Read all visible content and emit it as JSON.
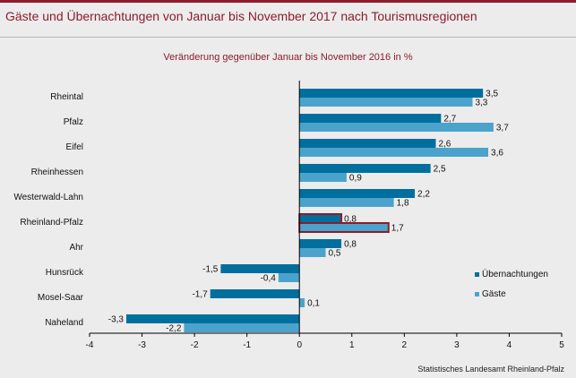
{
  "title": "Gäste und Übernachtungen von Januar bis November 2017 nach Tourismusregionen",
  "source": "Statistisches Landesamt Rheinland-Pfalz",
  "colors": {
    "uebernachtungen": "#006f9e",
    "gaeste": "#4ba3cc",
    "highlight": "#8c1c2c",
    "title": "#8c1c2c"
  },
  "chart_data": {
    "type": "bar",
    "orientation": "horizontal",
    "title": "Veränderung gegenüber Januar bis November 2016 in %",
    "categories": [
      "Rheintal",
      "Pfalz",
      "Eifel",
      "Rheinhessen",
      "Westerwald-Lahn",
      "Rheinland-Pfalz",
      "Ahr",
      "Hunsrück",
      "Mosel-Saar",
      "Naheland"
    ],
    "highlight_category": "Rheinland-Pfalz",
    "series": [
      {
        "name": "Übernachtungen",
        "values": [
          3.5,
          2.7,
          2.6,
          2.5,
          2.2,
          0.8,
          0.8,
          -1.5,
          -1.7,
          -3.3
        ]
      },
      {
        "name": "Gäste",
        "values": [
          3.3,
          3.7,
          3.6,
          0.9,
          1.8,
          1.7,
          0.5,
          -0.4,
          0.1,
          -2.2
        ]
      }
    ],
    "value_labels": [
      [
        "3,5",
        "2,7",
        "2,6",
        "2,5",
        "2,2",
        "0,8",
        "0,8",
        "-1,5",
        "-1,7",
        "-3,3"
      ],
      [
        "3,3",
        "3,7",
        "3,6",
        "0,9",
        "1,8",
        "1,7",
        "0,5",
        "-0,4",
        "0,1",
        "-2,2"
      ]
    ],
    "xlim": [
      -4,
      5
    ],
    "xticks": [
      -4,
      -3,
      -2,
      -1,
      0,
      1,
      2,
      3,
      4,
      5
    ],
    "xtick_labels": [
      "-4",
      "-3",
      "-2",
      "-1",
      "0",
      "1",
      "2",
      "3",
      "4",
      "5"
    ],
    "legend_position": "right",
    "grid": false
  }
}
